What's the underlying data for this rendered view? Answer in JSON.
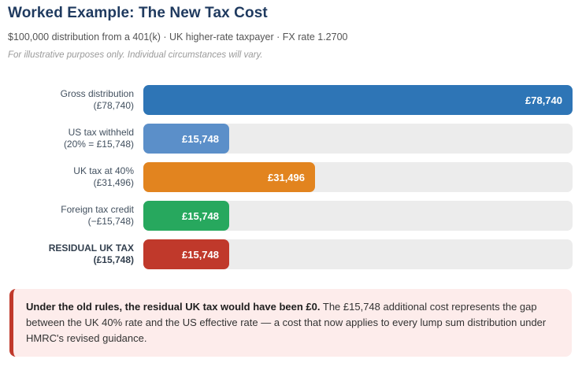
{
  "header": {
    "title": "Worked Example: The New Tax Cost",
    "subtitle": "$100,000 distribution from a 401(k) · UK higher-rate taxpayer · FX rate 1.2700",
    "note": "For illustrative purposes only. Individual circumstances will vary."
  },
  "chart_data": {
    "type": "bar",
    "orientation": "horizontal",
    "title": "Worked Example: The New Tax Cost",
    "categories": [
      "Gross distribution",
      "US tax withheld",
      "UK tax at 40%",
      "Foreign tax credit",
      "RESIDUAL UK TAX"
    ],
    "category_sublabels": [
      "(£78,740)",
      "(20% = £15,748)",
      "(£31,496)",
      "(−£15,748)",
      "(£15,748)"
    ],
    "values": [
      78740,
      15748,
      31496,
      15748,
      15748
    ],
    "value_labels": [
      "£78,740",
      "£15,748",
      "£31,496",
      "£15,748",
      "£15,748"
    ],
    "bar_colors": [
      "#2e75b6",
      "#5b8fc9",
      "#e2841f",
      "#27a85e",
      "#c0392b"
    ],
    "track_color": "#ececec",
    "xlim": [
      0,
      78740
    ],
    "grid": false,
    "legend": false,
    "emphasized_row": 4,
    "value_label_position": "inside-right"
  },
  "callout": {
    "lead": "Under the old rules, the residual UK tax would have been £0.",
    "body": "The £15,748 additional cost represents the gap between the UK 40% rate and the US effective rate — a cost that now applies to every lump sum distribution under HMRC's revised guidance.",
    "accent_color": "#c0392b",
    "background_color": "#fdeceb"
  }
}
